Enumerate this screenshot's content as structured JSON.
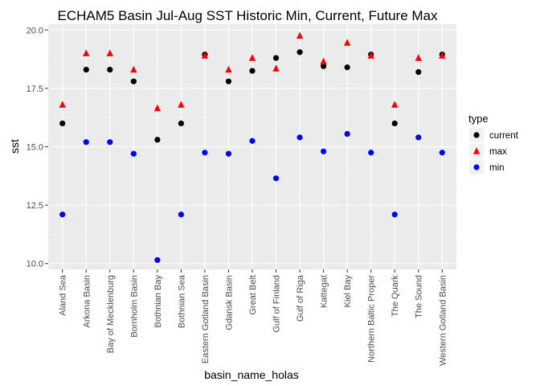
{
  "chart_data": {
    "type": "scatter",
    "title": "ECHAM5 Basin Jul-Aug SST Historic Min, Current, Future Max",
    "xlabel": "basin_name_holas",
    "ylabel": "sst",
    "ylim": [
      9.75,
      20.25
    ],
    "yticks": [
      "10.0",
      "12.5",
      "15.0",
      "17.5",
      "20.0"
    ],
    "grid": true,
    "legend_position": "right",
    "legend_title": "type",
    "categories": [
      "Aland Sea",
      "Arkona Basin",
      "Bay of Mecklenburg",
      "Bornholm Basin",
      "Bothnian Bay",
      "Bothnian Sea",
      "Eastern Gotland Basin",
      "Gdansk Basin",
      "Great Belt",
      "Gulf of Finland",
      "Gulf of Riga",
      "Kattegat",
      "Kiel Bay",
      "Northern Baltic Proper",
      "The Quark",
      "The Sound",
      "Western Gotland Basin"
    ],
    "series": [
      {
        "name": "current",
        "color": "#000000",
        "marker": "circle",
        "values": [
          16.0,
          18.3,
          18.3,
          17.8,
          15.3,
          16.0,
          18.95,
          17.8,
          18.25,
          18.8,
          19.05,
          18.45,
          18.4,
          18.95,
          16.0,
          18.2,
          18.95
        ]
      },
      {
        "name": "max",
        "color": "#ff0000",
        "marker": "triangle",
        "values": [
          16.8,
          19.0,
          19.0,
          18.3,
          16.65,
          16.8,
          18.9,
          18.3,
          18.8,
          18.35,
          19.75,
          18.65,
          19.45,
          18.9,
          16.8,
          18.8,
          18.9
        ]
      },
      {
        "name": "min",
        "color": "#0000ff",
        "marker": "circle",
        "values": [
          12.1,
          15.2,
          15.2,
          14.7,
          10.15,
          12.1,
          14.75,
          14.7,
          15.25,
          13.65,
          15.4,
          14.8,
          15.55,
          14.75,
          12.1,
          15.4,
          14.75
        ]
      }
    ]
  }
}
